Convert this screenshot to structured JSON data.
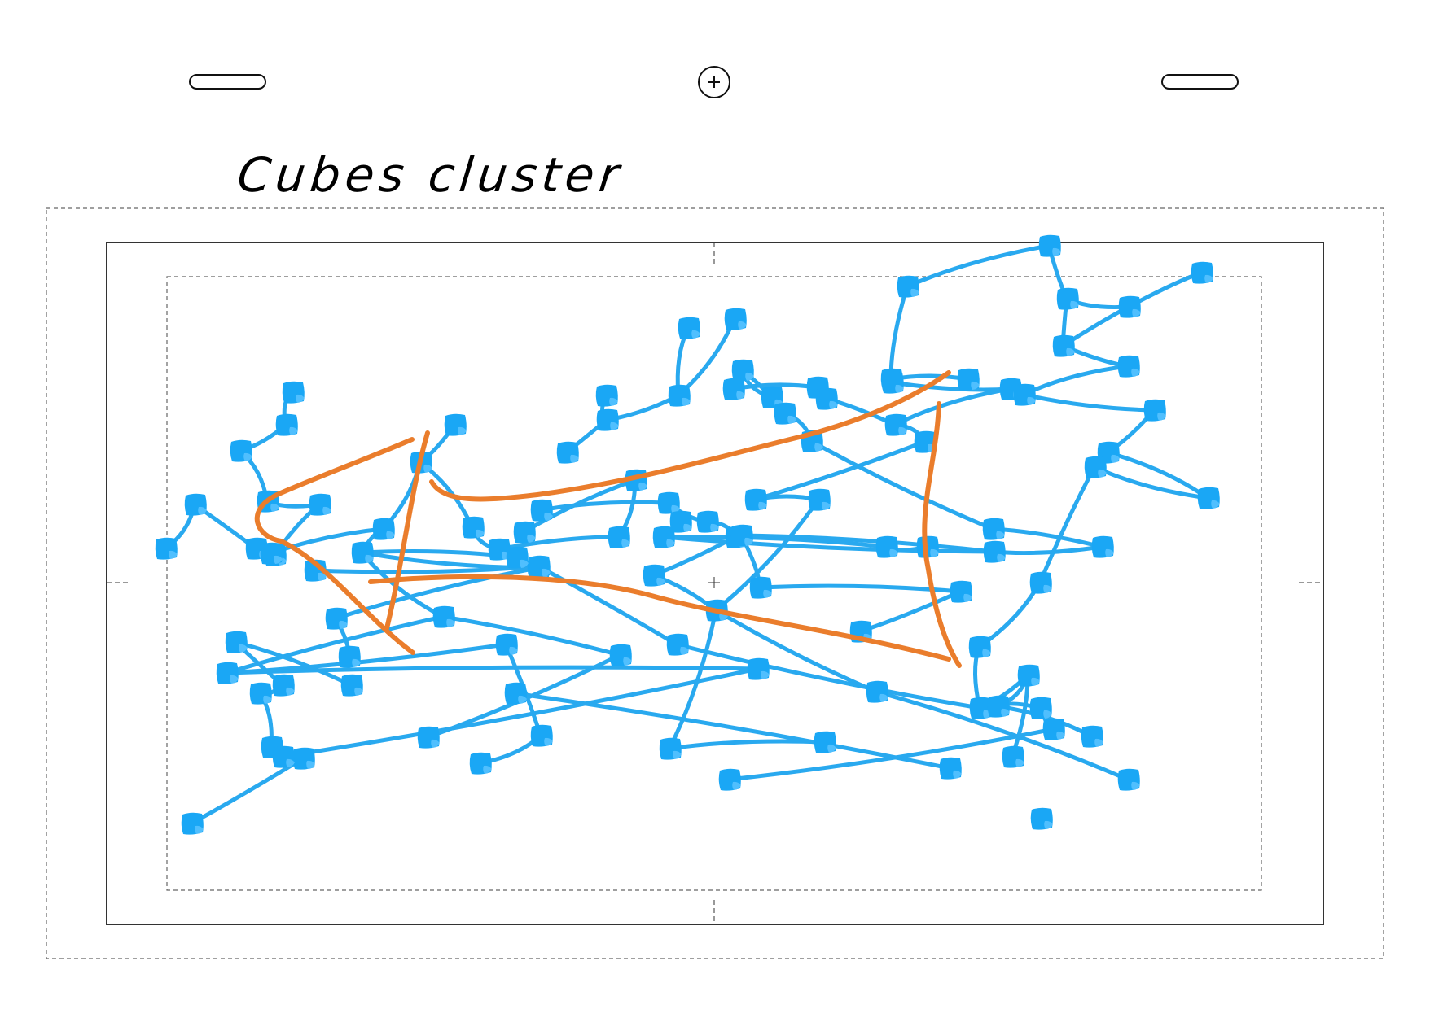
{
  "canvas": {
    "title": "Cubes cluster",
    "node_color": "#1aa7f5",
    "edge_color": "#29a9ef",
    "lasso_color": "#ea7d2c",
    "frame_color": "#333333"
  },
  "toolbar": {
    "left_handle": "resize-handle",
    "add_icon": "plus-circle-icon",
    "right_handle": "resize-handle"
  }
}
